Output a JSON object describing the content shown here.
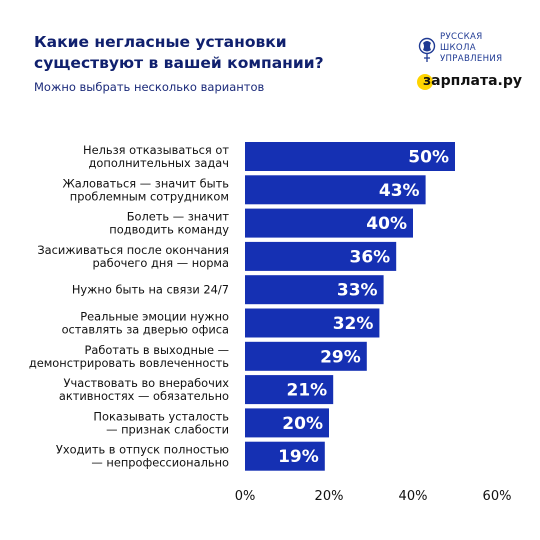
{
  "header": {
    "title": "Какие негласные установки существуют в вашей компании?",
    "subtitle": "Можно выбрать несколько вариантов"
  },
  "logos": {
    "rsu": [
      "РУССКАЯ",
      "ШКОЛА",
      "УПРАВЛЕНИЯ"
    ],
    "zarplata": "зарплата.ру"
  },
  "colors": {
    "bar": "#1530b3",
    "accent": "#ffd400",
    "text": "#10206e"
  },
  "chart_data": {
    "type": "bar",
    "orientation": "horizontal",
    "title": "Какие негласные установки существуют в вашей компании?",
    "subtitle": "Можно выбрать несколько вариантов",
    "categories": [
      [
        "Нельзя отказываться от",
        "дополнительных задач"
      ],
      [
        "Жаловаться — значит быть",
        "проблемным сотрудником"
      ],
      [
        "Болеть — значит",
        "подводить команду"
      ],
      [
        "Засиживаться после окончания",
        "рабочего дня — норма"
      ],
      [
        "Нужно быть на связи 24/7"
      ],
      [
        "Реальные эмоции нужно",
        "оставлять за дверью офиса"
      ],
      [
        "Работать в выходные —",
        "демонстрировать вовлеченность"
      ],
      [
        "Участвовать во внерабочих",
        "активностях — обязательно"
      ],
      [
        "Показывать усталость",
        "— признак слабости"
      ],
      [
        "Уходить в отпуск полностью",
        "— непрофессионально"
      ]
    ],
    "values": [
      50,
      43,
      40,
      36,
      33,
      32,
      29,
      21,
      20,
      19
    ],
    "value_labels": [
      "50%",
      "43%",
      "40%",
      "36%",
      "33%",
      "32%",
      "29%",
      "21%",
      "20%",
      "19%"
    ],
    "xticks": [
      0,
      20,
      40,
      60
    ],
    "xtick_labels": [
      "0%",
      "20%",
      "40%",
      "60%"
    ],
    "xlim": [
      0,
      60
    ],
    "grid": false,
    "legend": "none"
  }
}
